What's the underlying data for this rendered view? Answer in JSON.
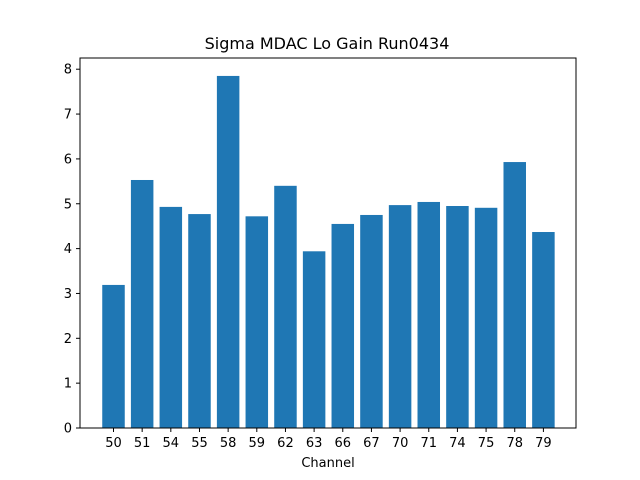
{
  "chart_data": {
    "type": "bar",
    "title": "Sigma MDAC Lo Gain Run0434",
    "xlabel": "Channel",
    "ylabel": "",
    "categories": [
      "50",
      "51",
      "54",
      "55",
      "58",
      "59",
      "62",
      "63",
      "66",
      "67",
      "70",
      "71",
      "74",
      "75",
      "78",
      "79"
    ],
    "values": [
      3.19,
      5.53,
      4.93,
      4.77,
      7.85,
      4.72,
      5.4,
      3.94,
      4.55,
      4.75,
      4.97,
      5.04,
      4.95,
      4.91,
      5.93,
      4.37
    ],
    "ylim": [
      0,
      8.25
    ],
    "yticks": [
      0,
      1,
      2,
      3,
      4,
      5,
      6,
      7,
      8
    ],
    "grid": false,
    "bar_color": "#1f77b4"
  }
}
